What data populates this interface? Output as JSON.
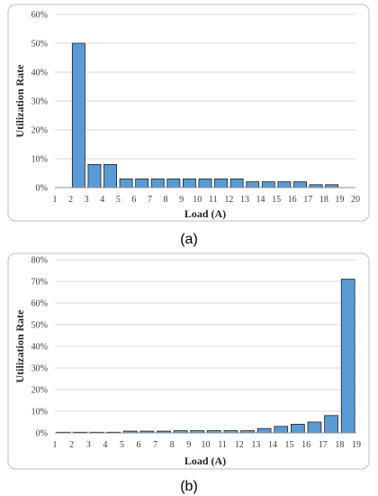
{
  "colors": {
    "bar_fill": "#5b9bd5",
    "bar_stroke": "#1f1f1f"
  },
  "chart_data": [
    {
      "type": "bar",
      "panel_label": "(a)",
      "title": "",
      "xlabel": "Load (A)",
      "ylabel": "Utilization Rate",
      "x_ticks": [
        "1",
        "2",
        "3",
        "4",
        "5",
        "6",
        "7",
        "8",
        "9",
        "10",
        "11",
        "12",
        "13",
        "14",
        "15",
        "16",
        "17",
        "18",
        "19",
        "20"
      ],
      "categories": [
        "2",
        "3",
        "4",
        "5",
        "6",
        "7",
        "8",
        "9",
        "10",
        "11",
        "12",
        "13",
        "14",
        "15",
        "16",
        "17",
        "18"
      ],
      "values": [
        50,
        8,
        8,
        3,
        3,
        3,
        3,
        3,
        3,
        3,
        3,
        2,
        2,
        2,
        2,
        1,
        1
      ],
      "ylim": [
        0,
        60
      ],
      "y_ticks": [
        0,
        10,
        20,
        30,
        40,
        50,
        60
      ],
      "y_tick_labels": [
        "0%",
        "10%",
        "20%",
        "30%",
        "40%",
        "50%",
        "60%"
      ],
      "grid": true,
      "legend": "none"
    },
    {
      "type": "bar",
      "panel_label": "(b)",
      "title": "",
      "xlabel": "Load (A)",
      "ylabel": "Utilization Rate",
      "x_ticks": [
        "1",
        "2",
        "3",
        "4",
        "5",
        "6",
        "7",
        "8",
        "9",
        "10",
        "11",
        "12",
        "13",
        "14",
        "15",
        "16",
        "17",
        "18",
        "19"
      ],
      "categories": [
        "1",
        "2",
        "3",
        "4",
        "5",
        "6",
        "7",
        "8",
        "9",
        "10",
        "11",
        "12",
        "13",
        "14",
        "15",
        "16",
        "17",
        "18"
      ],
      "values": [
        0.3,
        0.3,
        0.3,
        0.3,
        0.8,
        0.8,
        0.8,
        1,
        1,
        1,
        1,
        1,
        2,
        3,
        4,
        5,
        8,
        71
      ],
      "ylim": [
        0,
        80
      ],
      "y_ticks": [
        0,
        10,
        20,
        30,
        40,
        50,
        60,
        70,
        80
      ],
      "y_tick_labels": [
        "0%",
        "10%",
        "20%",
        "30%",
        "40%",
        "50%",
        "60%",
        "70%",
        "80%"
      ],
      "grid": true,
      "legend": "none"
    }
  ]
}
